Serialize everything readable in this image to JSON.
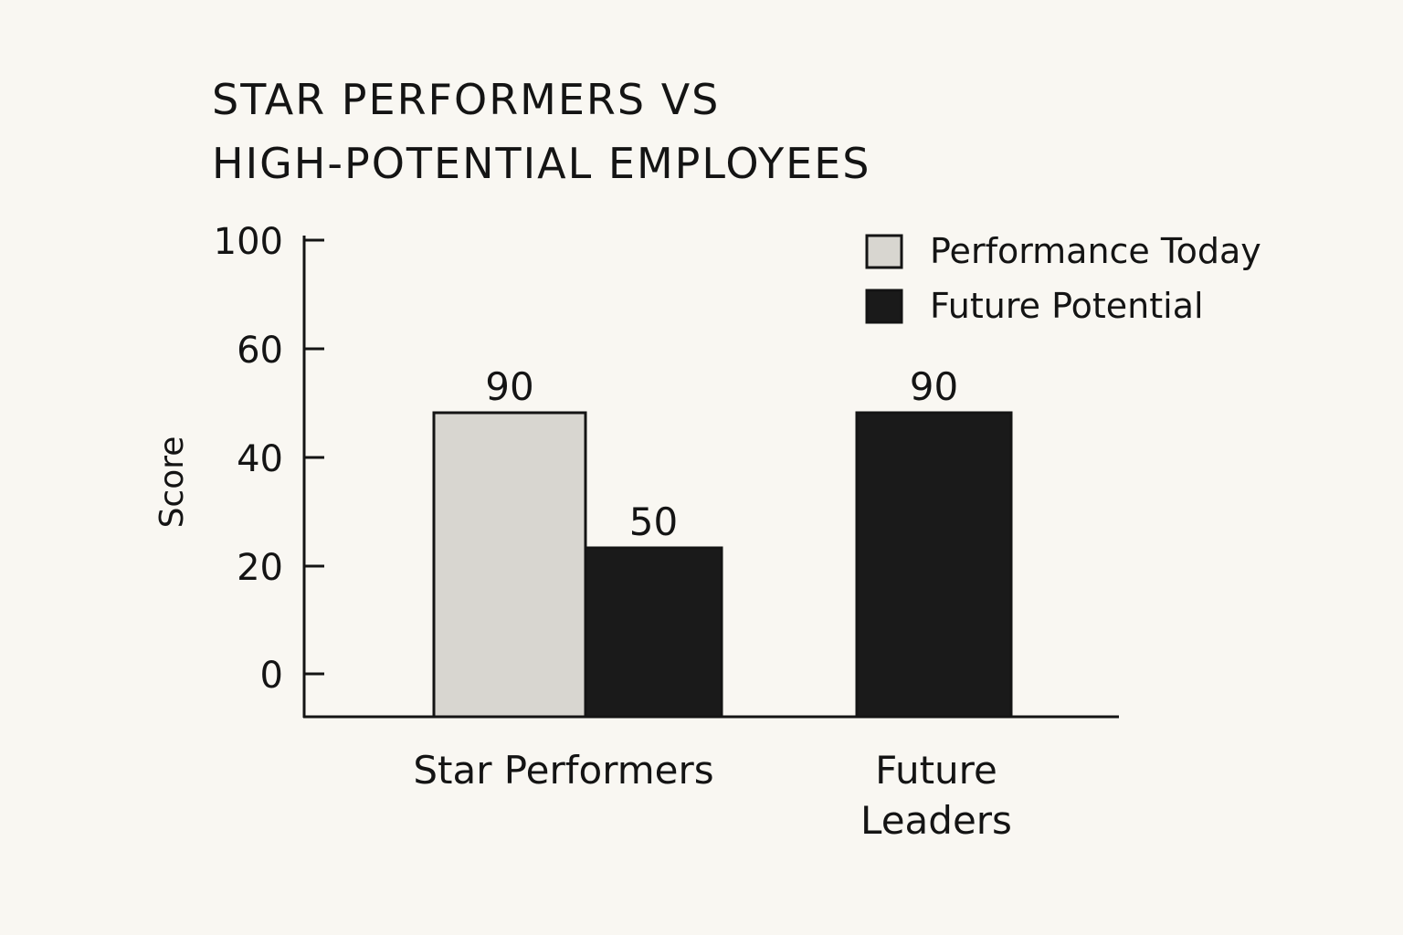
{
  "chart_data": {
    "type": "bar",
    "title_lines": [
      "STAR PERFORMERS VS",
      "HIGH-POTENTIAL EMPLOYEES"
    ],
    "ylabel": "Score",
    "xlabel": "",
    "y_ticks": [
      "0",
      "20",
      "40",
      "60",
      "100"
    ],
    "categories": [
      [
        "Star Performers"
      ],
      [
        "Future",
        "Leaders"
      ]
    ],
    "series": [
      {
        "name": "Performance Today",
        "color": "#d8d6d0",
        "values": [
          90,
          null
        ]
      },
      {
        "name": "Future Potential",
        "color": "#1a1a1a",
        "values": [
          50,
          90
        ]
      }
    ],
    "data_labels": [
      [
        "90",
        null
      ],
      [
        "50",
        "90"
      ]
    ],
    "legend_position": "top-right",
    "grid": false
  }
}
